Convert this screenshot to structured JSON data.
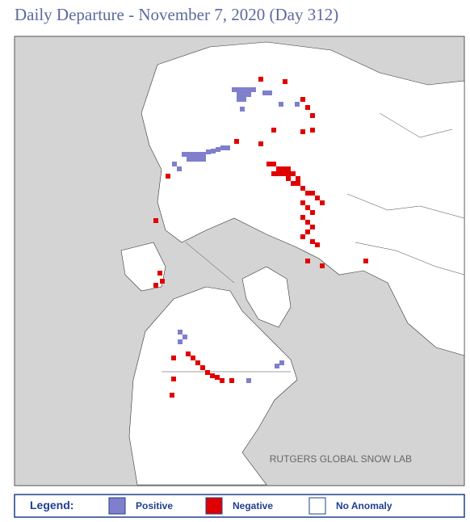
{
  "header": {
    "title": "Daily Departure - November 7, 2020 (Day 312)"
  },
  "map": {
    "credit": "RUTGERS GLOBAL SNOW LAB"
  },
  "legend": {
    "title": "Legend:",
    "items": [
      {
        "label": "Positive",
        "color": "#7f7fcc"
      },
      {
        "label": "Negative",
        "color": "#e00000"
      },
      {
        "label": "No Anomaly",
        "color": "#ffffff"
      }
    ]
  }
}
